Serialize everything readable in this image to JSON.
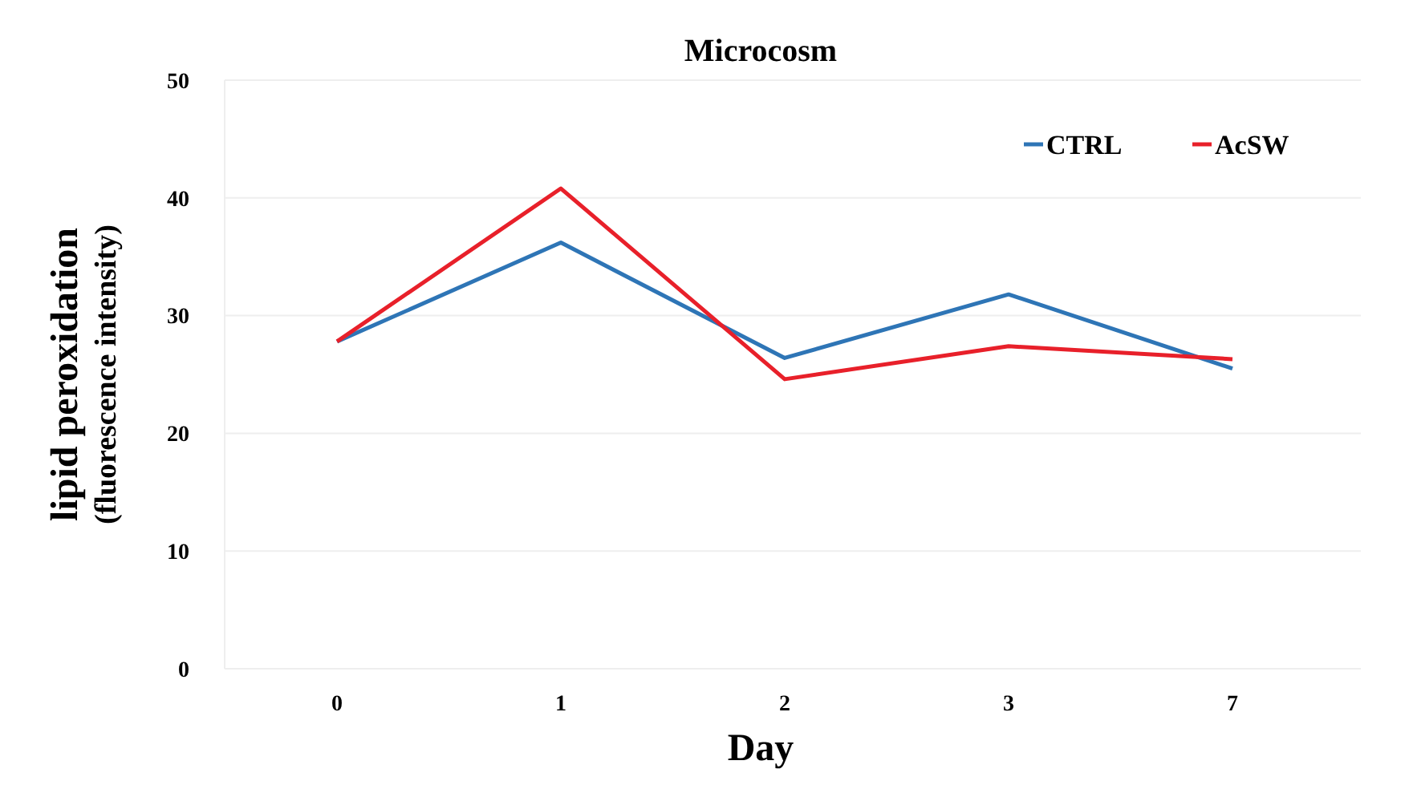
{
  "chart_data": {
    "type": "line",
    "title": "Microcosm",
    "xlabel": "Day",
    "ylabel": "lipid peroxidation\n(fluorescence intensity)",
    "categories": [
      "0",
      "1",
      "2",
      "3",
      "7"
    ],
    "series": [
      {
        "name": "CTRL",
        "color": "#2e75b6",
        "values": [
          27.8,
          36.2,
          26.4,
          31.8,
          25.5
        ]
      },
      {
        "name": "AcSW",
        "color": "#e8202a",
        "values": [
          27.8,
          40.8,
          24.6,
          27.4,
          26.3
        ]
      }
    ],
    "ylim": [
      0,
      50
    ],
    "yticks": [
      0,
      10,
      20,
      30,
      40,
      50
    ],
    "grid": "y",
    "legend": "top right"
  }
}
